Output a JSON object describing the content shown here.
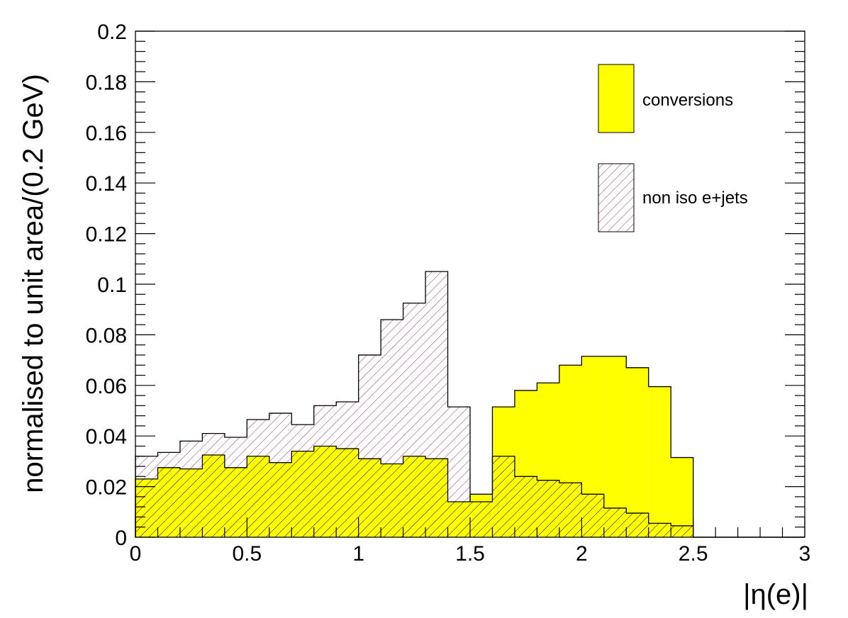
{
  "chart_data": {
    "type": "histogram",
    "title": "",
    "xlabel": "|η(e)|",
    "ylabel": "normalised to unit area/(0.2 GeV)",
    "xlim": [
      0,
      3
    ],
    "ylim": [
      0,
      0.2
    ],
    "bin_width": 0.1,
    "x_ticks": [
      "0",
      "0.5",
      "1",
      "1.5",
      "2",
      "2.5",
      "3"
    ],
    "y_ticks": [
      "0",
      "0.02",
      "0.04",
      "0.06",
      "0.08",
      "0.1",
      "0.12",
      "0.14",
      "0.16",
      "0.18",
      "0.2"
    ],
    "x_tick_values": [
      0,
      0.5,
      1,
      1.5,
      2,
      2.5,
      3
    ],
    "y_tick_values": [
      0,
      0.02,
      0.04,
      0.06,
      0.08,
      0.1,
      0.12,
      0.14,
      0.16,
      0.18,
      0.2
    ],
    "grid": false,
    "legend_position": "top-right",
    "series": [
      {
        "name": "conversions",
        "style": "solid-fill",
        "color": "#ffff00",
        "values": [
          0.023,
          0.0275,
          0.027,
          0.0325,
          0.0275,
          0.032,
          0.0295,
          0.034,
          0.036,
          0.035,
          0.031,
          0.029,
          0.032,
          0.031,
          0.014,
          0.017,
          0.0515,
          0.058,
          0.061,
          0.068,
          0.0715,
          0.0715,
          0.067,
          0.0595,
          0.0315,
          0,
          0,
          0,
          0,
          0
        ]
      },
      {
        "name": "non iso e+jets",
        "style": "hatched",
        "color": "#b03060",
        "values": [
          0.032,
          0.0335,
          0.038,
          0.041,
          0.0395,
          0.0465,
          0.049,
          0.0445,
          0.052,
          0.0535,
          0.072,
          0.086,
          0.0925,
          0.105,
          0.0515,
          0.014,
          0.032,
          0.024,
          0.0225,
          0.0215,
          0.017,
          0.0115,
          0.0095,
          0.0055,
          0.0045,
          0,
          0,
          0,
          0,
          0
        ]
      }
    ]
  }
}
